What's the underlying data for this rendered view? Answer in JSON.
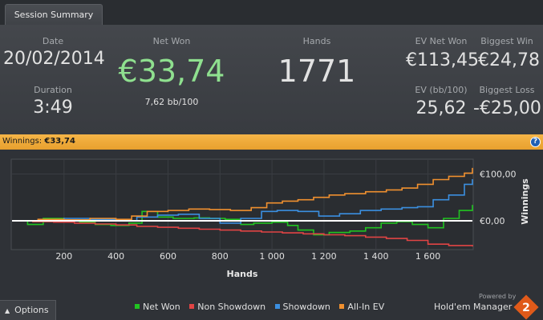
{
  "tab": {
    "label": "Session Summary"
  },
  "summary": {
    "date_label": "Date",
    "date": "20/02/2014",
    "duration_label": "Duration",
    "duration": "3:49",
    "netwon_label": "Net Won",
    "netwon": "€33,74",
    "bb100": "7,62 bb/100",
    "hands_label": "Hands",
    "hands": "1771",
    "ev_label": "EV Net Won",
    "ev": "€113,45",
    "evbb_label": "EV (bb/100)",
    "evbb": "25,62",
    "bigwin_label": "Biggest Win",
    "bigwin": "€24,78",
    "bigloss_label": "Biggest Loss",
    "bigloss": "-€25,00"
  },
  "winbar": {
    "label": "Winnings:",
    "value": "€33,74",
    "help": "?"
  },
  "colors": {
    "netwon": "#8fe08f",
    "net_won_series": "#21c421",
    "non_showdown": "#e14444",
    "showdown": "#3b8fe0",
    "allin_ev": "#f0902f",
    "accent": "#f0a836"
  },
  "chart_data": {
    "type": "line",
    "xlabel": "Hands",
    "ylabel": "Winnings",
    "xlim": [
      0,
      1771
    ],
    "ylim": [
      -60,
      130
    ],
    "x_ticks": [
      200,
      400,
      600,
      800,
      1000,
      1200,
      1400,
      1600
    ],
    "x_tick_labels": [
      "200",
      "400",
      "600",
      "800",
      "1 000",
      "1 200",
      "1 400",
      "1 600"
    ],
    "y_ticks": [
      0,
      100
    ],
    "y_tick_labels": [
      "€0,00",
      "€100,00"
    ],
    "zero_line": true,
    "legend_position": "bottom",
    "series": [
      {
        "name": "Net Won",
        "color": "#21c421",
        "x": [
          0,
          60,
          120,
          200,
          260,
          320,
          380,
          450,
          500,
          560,
          620,
          700,
          760,
          820,
          880,
          930,
          1000,
          1060,
          1100,
          1160,
          1220,
          1300,
          1360,
          1420,
          1480,
          1540,
          1600,
          1660,
          1720,
          1771
        ],
        "y": [
          0,
          -8,
          5,
          2,
          -3,
          -8,
          -10,
          -5,
          20,
          8,
          5,
          6,
          5,
          3,
          -8,
          -5,
          -3,
          -10,
          -20,
          -30,
          -25,
          -22,
          -15,
          -5,
          -2,
          -8,
          -15,
          5,
          22,
          34
        ]
      },
      {
        "name": "Non Showdown",
        "color": "#e14444",
        "x": [
          0,
          80,
          160,
          240,
          320,
          400,
          480,
          560,
          640,
          720,
          800,
          880,
          960,
          1040,
          1120,
          1200,
          1280,
          1360,
          1440,
          1520,
          1600,
          1680,
          1771
        ],
        "y": [
          0,
          -2,
          -3,
          -5,
          -7,
          -9,
          -12,
          -14,
          -16,
          -18,
          -20,
          -22,
          -24,
          -26,
          -28,
          -30,
          -32,
          -35,
          -38,
          -42,
          -50,
          -53,
          -55
        ]
      },
      {
        "name": "Showdown",
        "color": "#3b8fe0",
        "x": [
          0,
          100,
          200,
          300,
          400,
          480,
          560,
          640,
          720,
          800,
          880,
          960,
          1020,
          1100,
          1180,
          1260,
          1340,
          1420,
          1500,
          1560,
          1620,
          1680,
          1740,
          1771
        ],
        "y": [
          0,
          2,
          5,
          3,
          0,
          8,
          12,
          14,
          5,
          -5,
          5,
          20,
          22,
          20,
          10,
          15,
          22,
          25,
          28,
          30,
          45,
          55,
          78,
          89
        ]
      },
      {
        "name": "All-In EV",
        "color": "#f0902f",
        "x": [
          0,
          100,
          200,
          300,
          400,
          460,
          520,
          600,
          680,
          760,
          840,
          920,
          980,
          1040,
          1100,
          1160,
          1220,
          1280,
          1360,
          1440,
          1500,
          1560,
          1620,
          1680,
          1740,
          1771
        ],
        "y": [
          0,
          3,
          2,
          5,
          3,
          10,
          20,
          22,
          25,
          24,
          22,
          28,
          38,
          42,
          45,
          50,
          55,
          58,
          62,
          66,
          70,
          78,
          88,
          95,
          102,
          113
        ]
      }
    ]
  },
  "footer": {
    "options": "Options",
    "legend": [
      "Net Won",
      "Non Showdown",
      "Showdown",
      "All-In EV"
    ],
    "powered": "Powered by",
    "brand": "Hold'em Manager",
    "brand_num": "2"
  }
}
